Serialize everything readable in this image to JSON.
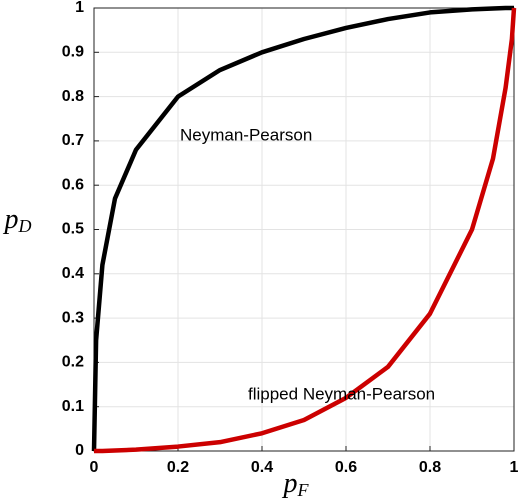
{
  "chart_data": {
    "type": "line",
    "xlabel": {
      "text": "p",
      "subscript": "F"
    },
    "ylabel": {
      "text": "p",
      "subscript": "D"
    },
    "annotations": [
      "Neyman-Pearson",
      "flipped Neyman-Pearson"
    ],
    "x": [
      0,
      0.005,
      0.02,
      0.05,
      0.1,
      0.2,
      0.3,
      0.4,
      0.5,
      0.6,
      0.7,
      0.8,
      0.9,
      0.95,
      0.98,
      0.995,
      1
    ],
    "series": [
      {
        "color": "#000000",
        "values": [
          0,
          0.25,
          0.42,
          0.57,
          0.68,
          0.8,
          0.86,
          0.9,
          0.93,
          0.955,
          0.975,
          0.99,
          0.997,
          0.999,
          1,
          1,
          1
        ]
      },
      {
        "color": "#cc0000",
        "values": [
          0,
          0,
          0,
          0.001,
          0.003,
          0.01,
          0.02,
          0.04,
          0.07,
          0.12,
          0.19,
          0.31,
          0.5,
          0.66,
          0.82,
          0.93,
          1
        ]
      }
    ],
    "xlim": [
      0,
      1
    ],
    "ylim": [
      0,
      1
    ],
    "xticks": [
      0,
      0.2,
      0.4,
      0.6,
      0.8,
      1
    ],
    "yticks": [
      0,
      0.1,
      0.2,
      0.3,
      0.4,
      0.5,
      0.6,
      0.7,
      0.8,
      0.9,
      1
    ],
    "grid": true
  }
}
